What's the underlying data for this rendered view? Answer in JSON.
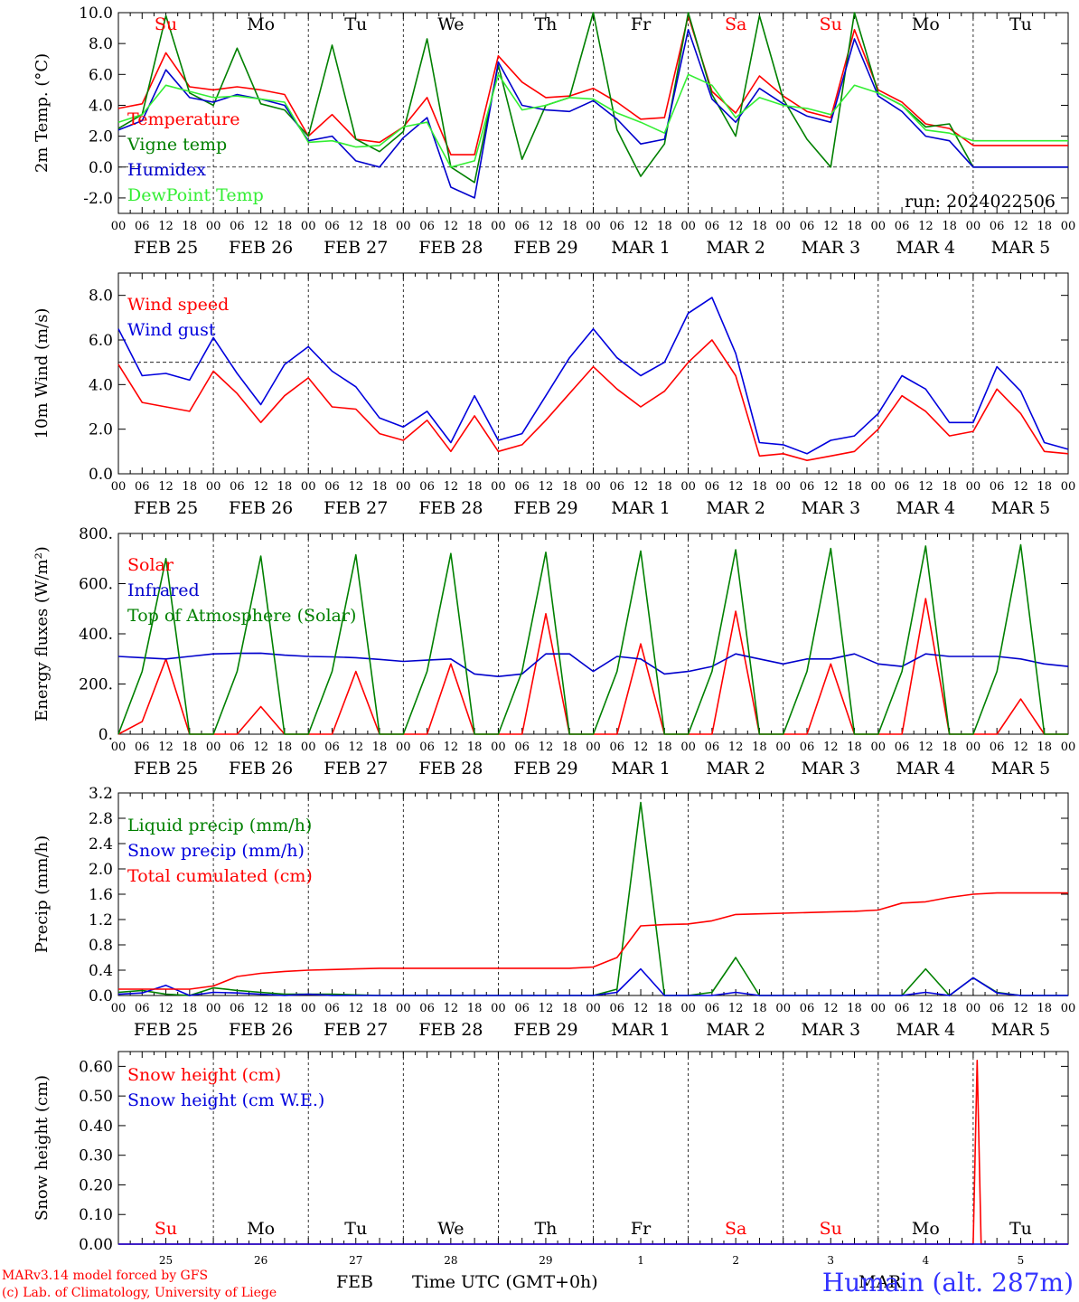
{
  "run_label": "run: 2024022506",
  "credit_line1": "MARv3.14 model forced by GFS",
  "credit_line2": "(c) Lab. of Climatology, University of Liege",
  "station_label": "Humain (alt. 287m)",
  "bottom_month_left": "FEB",
  "bottom_month_right": "MAR",
  "time_axis_label": "Time UTC (GMT+0h)",
  "hour_ticks": [
    "00",
    "06",
    "12",
    "18"
  ],
  "final_hour_tick": "00",
  "date_labels": [
    "FEB 25",
    "FEB 26",
    "FEB 27",
    "FEB 28",
    "FEB 29",
    "MAR  1",
    "MAR  2",
    "MAR  3",
    "MAR  4",
    "MAR  5"
  ],
  "day_names": [
    "Su",
    "Mo",
    "Tu",
    "We",
    "Th",
    "Fr",
    "Sa",
    "Su",
    "Mo",
    "Tu"
  ],
  "day_name_colors": [
    "#ff0000",
    "#000000",
    "#000000",
    "#000000",
    "#000000",
    "#000000",
    "#ff0000",
    "#ff0000",
    "#000000",
    "#000000"
  ],
  "day_numbers": [
    "25",
    "26",
    "27",
    "28",
    "29",
    "1",
    "2",
    "3",
    "4",
    "5"
  ],
  "chart_data": [
    {
      "type": "line",
      "ylabel": "2m Temp. (°C)",
      "ylim": [
        -3,
        10
      ],
      "yticks": [
        "-2.0",
        "0.0",
        "2.0",
        "4.0",
        "6.0",
        "8.0",
        "10.0"
      ],
      "ytick_values": [
        -2,
        0,
        2,
        4,
        6,
        8,
        10
      ],
      "dashed_reference": 0,
      "x_hours": [
        0,
        6,
        12,
        18,
        24,
        30,
        36,
        42,
        48,
        54,
        60,
        66,
        72,
        78,
        84,
        90,
        96,
        102,
        108,
        114,
        120,
        126,
        132,
        138,
        144,
        150,
        156,
        162,
        168,
        174,
        180,
        186,
        192,
        198,
        204,
        210,
        216,
        222,
        228,
        234,
        240
      ],
      "series": [
        {
          "name": "Temperature",
          "color": "#ff0000",
          "values": [
            3.8,
            4.1,
            7.4,
            5.2,
            5.0,
            5.2,
            5.0,
            4.7,
            2.0,
            3.4,
            1.8,
            1.6,
            2.6,
            4.5,
            0.8,
            0.8,
            7.2,
            5.5,
            4.5,
            4.6,
            5.1,
            4.2,
            3.1,
            3.2,
            9.8,
            4.9,
            3.5,
            5.9,
            4.6,
            3.6,
            3.2,
            8.9,
            5.0,
            4.2,
            2.8,
            2.5,
            1.4,
            1.4,
            1.4,
            1.4,
            1.4
          ]
        },
        {
          "name": "Vigne temp",
          "color": "#008000",
          "values": [
            2.5,
            3.4,
            9.8,
            4.8,
            4.0,
            7.7,
            4.1,
            3.7,
            2.0,
            7.9,
            1.8,
            1.0,
            2.3,
            8.3,
            0.0,
            -1.0,
            6.6,
            0.5,
            4.0,
            4.5,
            10.0,
            2.4,
            -0.6,
            1.5,
            10.0,
            4.7,
            2.0,
            9.8,
            4.4,
            1.8,
            0.0,
            10.0,
            4.8,
            4.0,
            2.6,
            2.8,
            0.0,
            0.0,
            0.0,
            0.0,
            0.0
          ]
        },
        {
          "name": "Humidex",
          "color": "#0000cc",
          "values": [
            2.4,
            3.0,
            6.3,
            4.5,
            4.2,
            4.7,
            4.4,
            4.0,
            1.7,
            2.0,
            0.4,
            0.0,
            1.9,
            3.2,
            -1.3,
            -2.0,
            6.8,
            4.0,
            3.7,
            3.6,
            4.3,
            3.1,
            1.5,
            1.8,
            8.9,
            4.4,
            2.9,
            5.1,
            4.1,
            3.3,
            2.9,
            8.3,
            4.6,
            3.6,
            2.0,
            1.7,
            0.0,
            0.0,
            0.0,
            0.0,
            0.0
          ]
        },
        {
          "name": "DewPoint Temp",
          "color": "#33ee33",
          "values": [
            2.9,
            3.4,
            5.3,
            4.9,
            4.5,
            4.6,
            4.4,
            4.2,
            1.6,
            1.7,
            1.3,
            1.4,
            2.6,
            2.9,
            0.0,
            0.4,
            6.0,
            3.7,
            4.0,
            4.5,
            4.4,
            3.5,
            2.9,
            2.2,
            6.0,
            5.3,
            3.2,
            4.5,
            4.0,
            3.8,
            3.4,
            5.3,
            4.8,
            4.0,
            2.4,
            2.2,
            1.7,
            1.7,
            1.7,
            1.7,
            1.7
          ]
        }
      ]
    },
    {
      "type": "line",
      "ylabel": "10m Wind (m/s)",
      "ylim": [
        0,
        9
      ],
      "yticks": [
        "0.0",
        "2.0",
        "4.0",
        "6.0",
        "8.0"
      ],
      "ytick_values": [
        0,
        2,
        4,
        6,
        8
      ],
      "dashed_reference": 5,
      "x_hours": [
        0,
        6,
        12,
        18,
        24,
        30,
        36,
        42,
        48,
        54,
        60,
        66,
        72,
        78,
        84,
        90,
        96,
        102,
        108,
        114,
        120,
        126,
        132,
        138,
        144,
        150,
        156,
        162,
        168,
        174,
        180,
        186,
        192,
        198,
        204,
        210,
        216,
        222,
        228,
        234,
        240
      ],
      "series": [
        {
          "name": "Wind speed",
          "color": "#ff0000",
          "values": [
            4.9,
            3.2,
            3.0,
            2.8,
            4.6,
            3.6,
            2.3,
            3.5,
            4.3,
            3.0,
            2.9,
            1.8,
            1.5,
            2.4,
            1.0,
            2.6,
            1.0,
            1.3,
            2.4,
            3.6,
            4.8,
            3.8,
            3.0,
            3.7,
            5.0,
            6.0,
            4.4,
            0.8,
            0.9,
            0.6,
            0.8,
            1.0,
            2.0,
            3.5,
            2.8,
            1.7,
            1.9,
            3.8,
            2.7,
            1.0,
            0.9
          ]
        },
        {
          "name": "Wind gust",
          "color": "#0000dd",
          "values": [
            6.5,
            4.4,
            4.5,
            4.2,
            6.1,
            4.5,
            3.1,
            4.9,
            5.7,
            4.6,
            3.9,
            2.5,
            2.1,
            2.8,
            1.4,
            3.5,
            1.5,
            1.8,
            3.5,
            5.2,
            6.5,
            5.2,
            4.4,
            5.0,
            7.2,
            7.9,
            5.4,
            1.4,
            1.3,
            0.9,
            1.5,
            1.7,
            2.7,
            4.4,
            3.8,
            2.3,
            2.3,
            4.8,
            3.7,
            1.4,
            1.1
          ]
        }
      ]
    },
    {
      "type": "line",
      "ylabel": "Energy fluxes (W/m²)",
      "ylim": [
        0,
        800
      ],
      "yticks": [
        "0.",
        "200.",
        "400.",
        "600.",
        "800."
      ],
      "ytick_values": [
        0,
        200,
        400,
        600,
        800
      ],
      "x_hours": [
        0,
        6,
        12,
        18,
        24,
        30,
        36,
        42,
        48,
        54,
        60,
        66,
        72,
        78,
        84,
        90,
        96,
        102,
        108,
        114,
        120,
        126,
        132,
        138,
        144,
        150,
        156,
        162,
        168,
        174,
        180,
        186,
        192,
        198,
        204,
        210,
        216,
        222,
        228,
        234,
        240
      ],
      "series": [
        {
          "name": "Solar",
          "color": "#ff0000",
          "values": [
            0,
            50,
            300,
            0,
            0,
            0,
            110,
            0,
            0,
            0,
            250,
            0,
            0,
            0,
            280,
            0,
            0,
            0,
            480,
            0,
            0,
            0,
            360,
            0,
            0,
            0,
            490,
            0,
            0,
            0,
            280,
            0,
            0,
            0,
            540,
            0,
            0,
            0,
            140,
            0,
            0
          ]
        },
        {
          "name": "Infrared",
          "color": "#0000cc",
          "values": [
            310,
            305,
            300,
            310,
            320,
            322,
            323,
            315,
            310,
            308,
            305,
            298,
            290,
            295,
            300,
            240,
            230,
            240,
            320,
            320,
            250,
            310,
            300,
            240,
            250,
            270,
            320,
            300,
            280,
            300,
            300,
            320,
            280,
            270,
            320,
            310,
            310,
            310,
            300,
            280,
            270
          ]
        },
        {
          "name": "Top of Atmosphere (Solar)",
          "color": "#008000",
          "values": [
            0,
            250,
            700,
            0,
            0,
            250,
            710,
            0,
            0,
            250,
            715,
            0,
            0,
            250,
            720,
            0,
            0,
            250,
            725,
            0,
            0,
            250,
            730,
            0,
            0,
            250,
            735,
            0,
            0,
            250,
            740,
            0,
            0,
            250,
            750,
            0,
            0,
            250,
            755,
            0,
            0
          ]
        }
      ]
    },
    {
      "type": "line",
      "ylabel": "Precip (mm/h)",
      "ylim": [
        0,
        3.2
      ],
      "yticks": [
        "0.0",
        "0.4",
        "0.8",
        "1.2",
        "1.6",
        "2.0",
        "2.4",
        "2.8",
        "3.2"
      ],
      "ytick_values": [
        0,
        0.4,
        0.8,
        1.2,
        1.6,
        2.0,
        2.4,
        2.8,
        3.2
      ],
      "x_hours": [
        0,
        6,
        12,
        18,
        24,
        30,
        36,
        42,
        48,
        54,
        60,
        66,
        72,
        78,
        84,
        90,
        96,
        102,
        108,
        114,
        120,
        126,
        132,
        138,
        144,
        150,
        156,
        162,
        168,
        174,
        180,
        186,
        192,
        198,
        204,
        210,
        216,
        222,
        228,
        234,
        240
      ],
      "series": [
        {
          "name": "Liquid precip (mm/h)",
          "color": "#008000",
          "values": [
            0.05,
            0.08,
            0.02,
            0.0,
            0.12,
            0.08,
            0.05,
            0.02,
            0.02,
            0.02,
            0.01,
            0.0,
            0.0,
            0.0,
            0.0,
            0.0,
            0.0,
            0.0,
            0.0,
            0.0,
            0.0,
            0.1,
            3.05,
            0.0,
            0.0,
            0.05,
            0.6,
            0.0,
            0.0,
            0.0,
            0.0,
            0.0,
            0.0,
            0.0,
            0.42,
            0.0,
            0.28,
            0.05,
            0.0,
            0.0,
            0.0
          ]
        },
        {
          "name": "Snow precip (mm/h)",
          "color": "#0000dd",
          "values": [
            0.02,
            0.04,
            0.16,
            0.0,
            0.05,
            0.04,
            0.02,
            0.0,
            0.02,
            0.0,
            0.0,
            0.0,
            0.0,
            0.0,
            0.0,
            0.0,
            0.0,
            0.0,
            0.0,
            0.0,
            0.0,
            0.05,
            0.42,
            0.0,
            0.0,
            0.0,
            0.05,
            0.0,
            0.0,
            0.0,
            0.0,
            0.0,
            0.0,
            0.0,
            0.05,
            0.0,
            0.28,
            0.04,
            0.0,
            0.0,
            0.0
          ]
        },
        {
          "name": "Total cumulated (cm)",
          "color": "#ff0000",
          "values": [
            0.1,
            0.1,
            0.1,
            0.1,
            0.15,
            0.3,
            0.35,
            0.38,
            0.4,
            0.41,
            0.42,
            0.43,
            0.43,
            0.43,
            0.43,
            0.43,
            0.43,
            0.43,
            0.43,
            0.43,
            0.45,
            0.6,
            1.1,
            1.12,
            1.13,
            1.18,
            1.28,
            1.29,
            1.3,
            1.31,
            1.32,
            1.33,
            1.35,
            1.46,
            1.48,
            1.55,
            1.6,
            1.62,
            1.62,
            1.62,
            1.62
          ]
        }
      ]
    },
    {
      "type": "line",
      "ylabel": "Snow height (cm)",
      "ylim": [
        0,
        0.65
      ],
      "yticks": [
        "0.00",
        "0.10",
        "0.20",
        "0.30",
        "0.40",
        "0.50",
        "0.60"
      ],
      "ytick_values": [
        0,
        0.1,
        0.2,
        0.3,
        0.4,
        0.5,
        0.6
      ],
      "x_hours": [
        0,
        216,
        217,
        218,
        240
      ],
      "series": [
        {
          "name": "Snow height (cm)",
          "color": "#ff0000",
          "values": [
            0,
            0,
            0.62,
            0,
            0
          ]
        },
        {
          "name": "Snow height (cm W.E.)",
          "color": "#0000dd",
          "values": [
            0,
            0,
            0,
            0,
            0
          ]
        }
      ]
    }
  ]
}
